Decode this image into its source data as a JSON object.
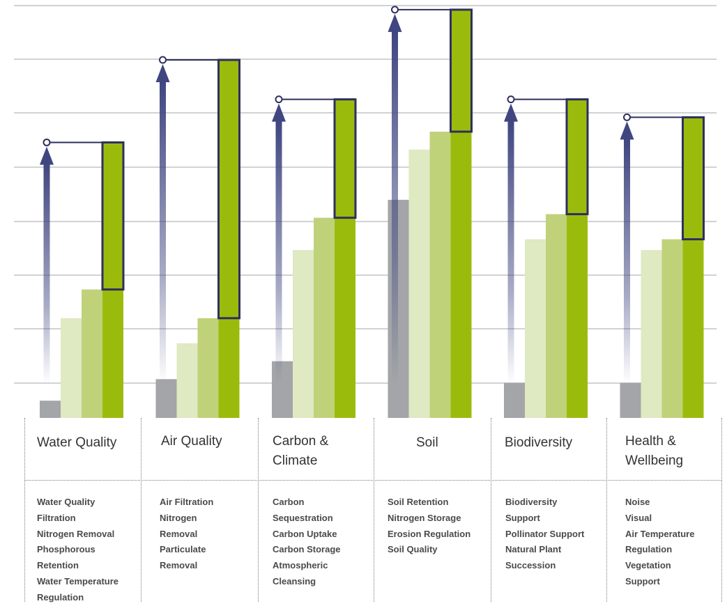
{
  "chart_data": {
    "type": "bar",
    "categories": [
      "Water Quality",
      "Air Quality",
      "Carbon & Climate",
      "Soil",
      "Biodiversity",
      "Health & Wellbeing"
    ],
    "ylim": [
      0,
      100
    ],
    "grid": true,
    "series": [
      {
        "values": [
          5,
          11,
          16,
          61,
          10,
          10
        ],
        "color": "#a3a5a8"
      },
      {
        "values": [
          28,
          21,
          47,
          75,
          50,
          47
        ],
        "color": "#dfe9c2"
      },
      {
        "values": [
          36,
          28,
          56,
          80,
          57,
          50
        ],
        "color": "#bfd27a"
      },
      {
        "values": [
          36,
          28,
          56,
          80,
          57,
          50
        ],
        "color": "#9bbb0c"
      }
    ],
    "potential": {
      "values": [
        77,
        100,
        89,
        114,
        89,
        84
      ],
      "color": "#9bbb0c",
      "outline_color": "#2e2f5e",
      "arrow_color": "#3f4680"
    },
    "indicators": [
      [
        "Water Quality",
        "Filtration",
        "Nitrogen Removal",
        "Phosphorous",
        "Retention",
        "Water Temperature",
        "Regulation"
      ],
      [
        "Air Filtration",
        "Nitrogen",
        "Removal",
        "Particulate",
        "Removal"
      ],
      [
        "Carbon",
        "Sequestration",
        "Carbon Uptake",
        "Carbon Storage",
        "Atmospheric",
        "Cleansing"
      ],
      [
        "Soil Retention",
        "Nitrogen Storage",
        "Erosion Regulation",
        "Soil Quality"
      ],
      [
        "Biodiversity",
        "Support",
        "Pollinator Support",
        "Natural Plant",
        "Succession"
      ],
      [
        "Noise",
        "Visual",
        "Air Temperature",
        "Regulation",
        "Vegetation",
        "Support"
      ]
    ]
  },
  "labels": {
    "water_quality": "Water Quality",
    "air_quality": "Air Quality",
    "carbon_line1": "Carbon &",
    "carbon_line2": "Climate",
    "soil": "Soil",
    "biodiversity": "Biodiversity",
    "health_line1": "Health &",
    "health_line2": "Wellbeing"
  }
}
